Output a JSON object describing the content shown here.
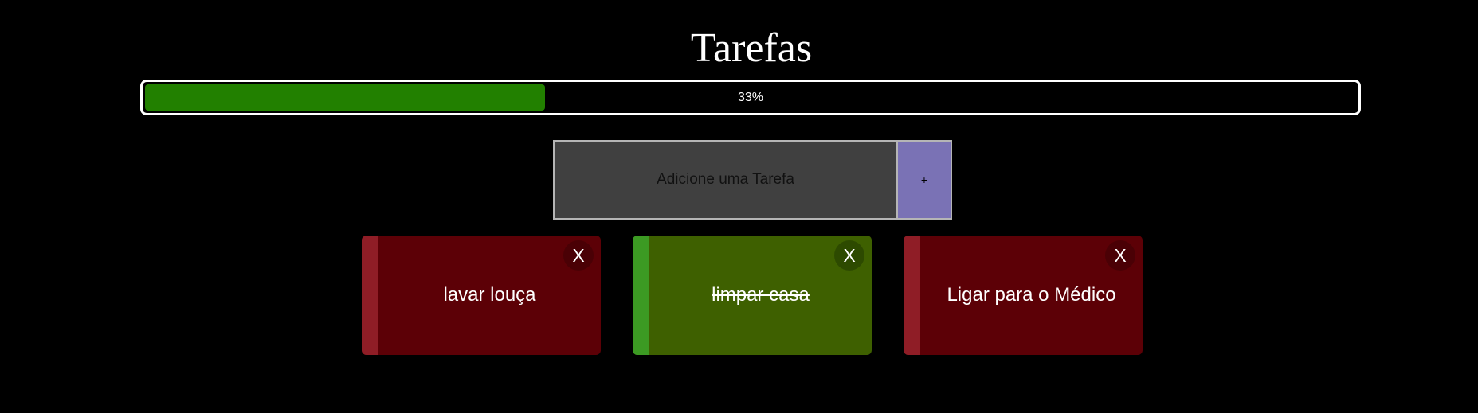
{
  "page": {
    "title": "Tarefas"
  },
  "progress": {
    "percent": 33,
    "label": "33%",
    "fill_color": "#228000"
  },
  "add_form": {
    "placeholder": "Adicione uma Tarefa",
    "value": "",
    "add_label": "+"
  },
  "tasks": [
    {
      "text": "lavar louça",
      "done": false,
      "delete_label": "X"
    },
    {
      "text": "limpar casa",
      "done": true,
      "delete_label": "X"
    },
    {
      "text": "Ligar para o Médico",
      "done": false,
      "delete_label": "X"
    }
  ],
  "colors": {
    "pending": "#5c0006",
    "done": "#3e6000",
    "add_button": "#7a72b5"
  }
}
